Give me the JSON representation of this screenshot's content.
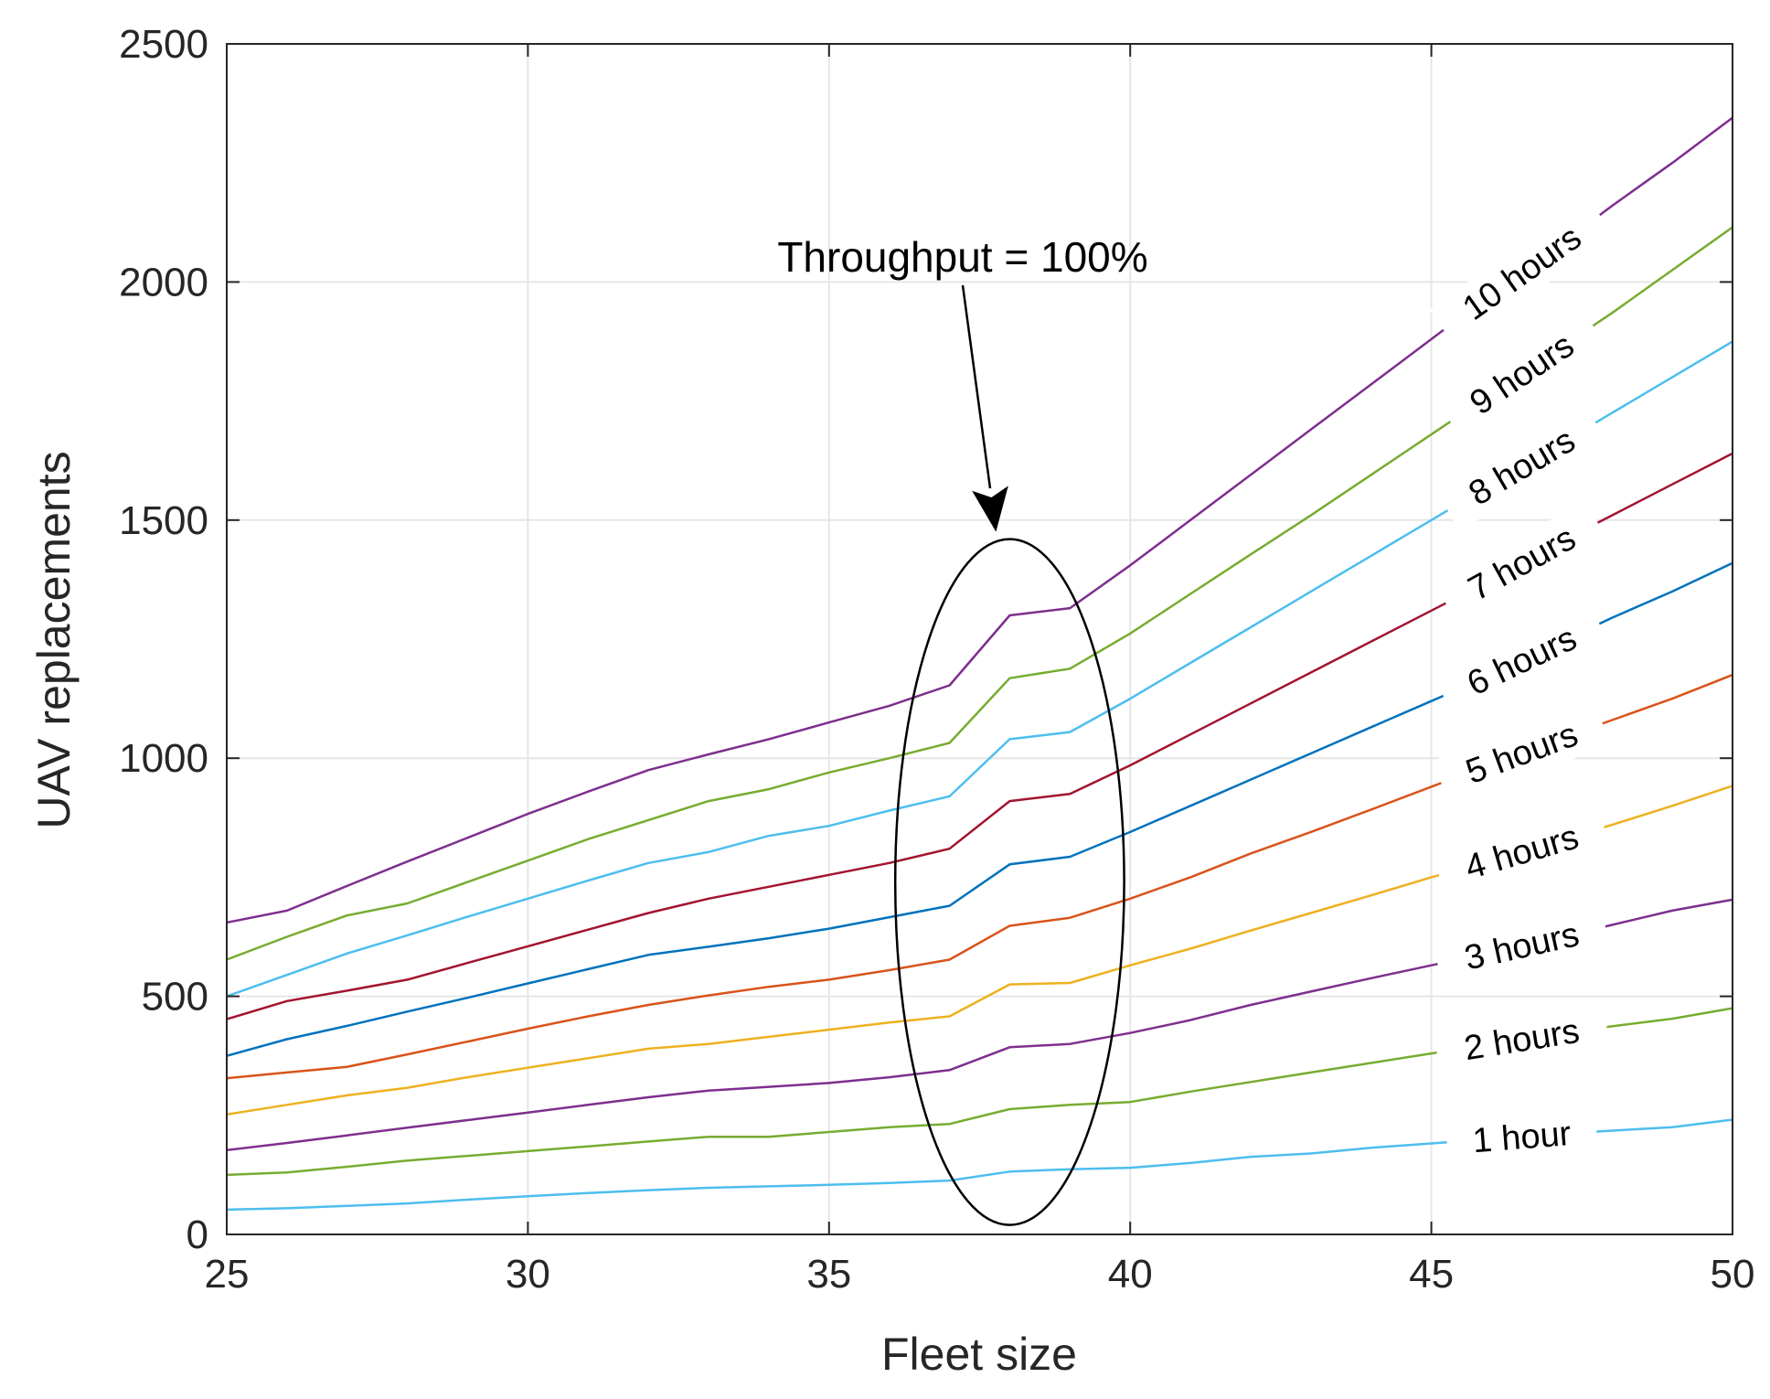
{
  "chart_data": {
    "type": "line",
    "xlabel": "Fleet size",
    "ylabel": "UAV replacements",
    "xlim": [
      25,
      50
    ],
    "ylim": [
      0,
      2500
    ],
    "xticks": [
      25,
      30,
      35,
      40,
      45,
      50
    ],
    "yticks": [
      0,
      500,
      1000,
      1500,
      2000,
      2500
    ],
    "grid": true,
    "x": [
      25,
      26,
      27,
      28,
      29,
      30,
      31,
      32,
      33,
      34,
      35,
      36,
      37,
      38,
      39,
      40,
      41,
      42,
      43,
      44,
      45,
      46,
      47,
      48,
      49,
      50
    ],
    "annotation": {
      "text": "Throughput = 100%",
      "ellipse": {
        "cx": 38,
        "cy": 740,
        "rx": 1.9,
        "ry": 720
      }
    },
    "series": [
      {
        "name": "1 hour",
        "label": "1 hour",
        "color": "#4DBEEE",
        "values": [
          52,
          55,
          60,
          65,
          73,
          80,
          87,
          93,
          98,
          101,
          104,
          108,
          113,
          132,
          137,
          140,
          150,
          163,
          170,
          182,
          191,
          200,
          210,
          218,
          225,
          241
        ]
      },
      {
        "name": "2 hours",
        "label": "2 hours",
        "color": "#77AC30",
        "values": [
          125,
          130,
          142,
          155,
          165,
          175,
          185,
          195,
          205,
          205,
          215,
          225,
          232,
          263,
          272,
          278,
          300,
          320,
          340,
          360,
          380,
          400,
          420,
          437,
          453,
          475
        ]
      },
      {
        "name": "3 hours",
        "label": "3 hours",
        "color": "#7E2F8E",
        "values": [
          177,
          192,
          208,
          224,
          240,
          256,
          272,
          288,
          302,
          310,
          318,
          330,
          345,
          393,
          400,
          423,
          450,
          482,
          510,
          538,
          565,
          592,
          620,
          650,
          680,
          703
        ]
      },
      {
        "name": "4 hours",
        "label": "4 hours",
        "color": "#EDB120",
        "values": [
          252,
          272,
          292,
          308,
          330,
          350,
          370,
          390,
          400,
          415,
          430,
          445,
          458,
          525,
          528,
          565,
          600,
          638,
          675,
          712,
          750,
          785,
          822,
          860,
          900,
          942
        ]
      },
      {
        "name": "5 hours",
        "label": "5 hours",
        "color": "#D95319",
        "values": [
          328,
          340,
          352,
          378,
          405,
          432,
          458,
          482,
          502,
          520,
          535,
          555,
          577,
          648,
          665,
          705,
          750,
          800,
          845,
          892,
          940,
          988,
          1035,
          1080,
          1125,
          1175
        ]
      },
      {
        "name": "6 hours",
        "label": "6 hours",
        "color": "#0072BD",
        "values": [
          375,
          410,
          438,
          468,
          497,
          527,
          557,
          587,
          604,
          622,
          642,
          666,
          690,
          777,
          793,
          845,
          900,
          955,
          1010,
          1065,
          1120,
          1175,
          1235,
          1295,
          1350,
          1410
        ]
      },
      {
        "name": "7 hours",
        "label": "7 hours",
        "color": "#A2142F",
        "values": [
          452,
          490,
          512,
          535,
          570,
          605,
          640,
          675,
          705,
          730,
          755,
          780,
          810,
          910,
          925,
          985,
          1050,
          1115,
          1180,
          1245,
          1310,
          1375,
          1445,
          1510,
          1575,
          1640
        ]
      },
      {
        "name": "8 hours",
        "label": "8 hours",
        "color": "#4DBEEE",
        "values": [
          500,
          545,
          590,
          628,
          667,
          705,
          743,
          780,
          803,
          837,
          858,
          890,
          920,
          1040,
          1055,
          1125,
          1200,
          1275,
          1350,
          1425,
          1500,
          1575,
          1650,
          1725,
          1800,
          1875
        ]
      },
      {
        "name": "9 hours",
        "label": "9 hours",
        "color": "#77AC30",
        "values": [
          577,
          625,
          670,
          695,
          740,
          785,
          830,
          870,
          910,
          935,
          970,
          1000,
          1032,
          1168,
          1188,
          1262,
          1345,
          1428,
          1510,
          1595,
          1680,
          1765,
          1850,
          1935,
          2025,
          2115
        ]
      },
      {
        "name": "10 hours",
        "label": "10 hours",
        "color": "#7E2F8E",
        "values": [
          655,
          680,
          732,
          783,
          833,
          883,
          930,
          975,
          1008,
          1040,
          1075,
          1110,
          1153,
          1300,
          1315,
          1405,
          1500,
          1595,
          1690,
          1785,
          1880,
          1975,
          2065,
          2160,
          2250,
          2345
        ]
      }
    ]
  }
}
